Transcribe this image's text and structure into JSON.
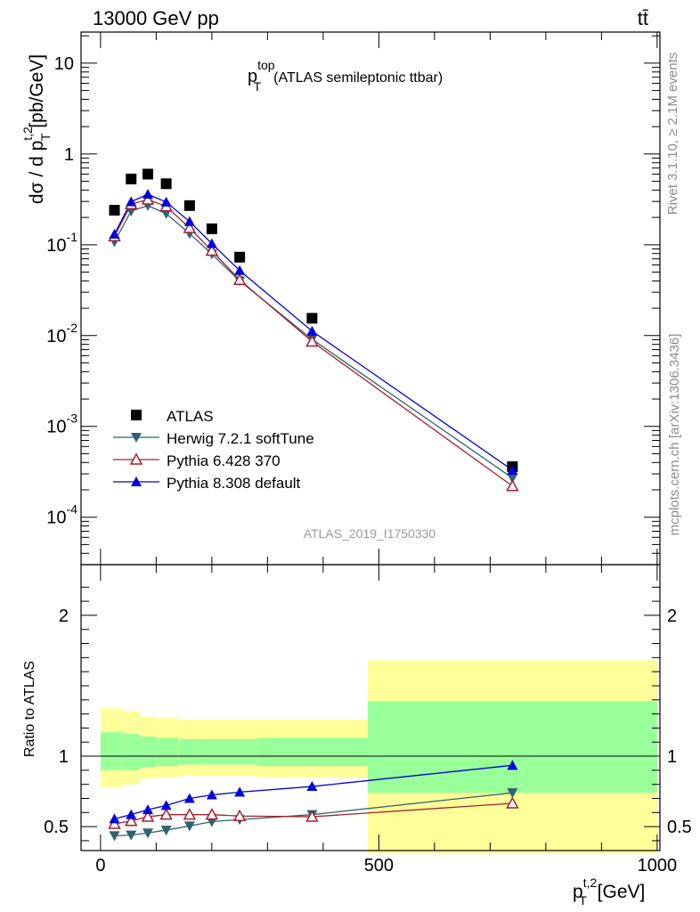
{
  "header": {
    "left": "13000 GeV pp",
    "right": "tt̄"
  },
  "sidebar": {
    "rivet": "Rivet 3.1.10, ≥ 2.1M events",
    "mcplots": "mcplots.cern.ch [arXiv:1306.3436]"
  },
  "main_title": {
    "var": "p",
    "sup": "top",
    "sub": "T",
    "rest": "(ATLAS semileptonic ttbar)"
  },
  "analysis_id": "ATLAS_2019_I1750330",
  "ylabel_upper": {
    "pre": "dσ / d p",
    "sup": "t,2",
    "sub": "T",
    "post": " [pb/GeV]"
  },
  "ylabel_lower": "Ratio to ATLAS",
  "xlabel": {
    "var": "p",
    "sup": "t,2",
    "sub": "T",
    "post": " [GeV]"
  },
  "legend": [
    {
      "label": "ATLAS",
      "marker": "square",
      "color": "#000000"
    },
    {
      "label": "Herwig 7.2.1 softTune",
      "marker": "triangle-down",
      "color": "#2e6270"
    },
    {
      "label": "Pythia 6.428 370",
      "marker": "triangle-open",
      "color": "#a3202f"
    },
    {
      "label": "Pythia 8.308 default",
      "marker": "triangle-up",
      "color": "#0000dd"
    }
  ],
  "chart_data": [
    {
      "type": "scatter",
      "panel": "main",
      "yscale": "log",
      "xlim": [
        -35,
        1005
      ],
      "ylim": [
        3e-05,
        22
      ],
      "x_ticks": [
        0,
        500,
        1000
      ],
      "y_tick_labels": [
        "10",
        "1",
        "10^-1",
        "10^-2",
        "10^-3",
        "10^-4"
      ],
      "y_tick_values": [
        10,
        1,
        0.1,
        0.01,
        0.001,
        0.0001
      ],
      "x": [
        25,
        55,
        85,
        118,
        160,
        200,
        250,
        380,
        740
      ],
      "series": [
        {
          "name": "ATLAS",
          "values": [
            0.24,
            0.53,
            0.6,
            0.47,
            0.27,
            0.15,
            0.073,
            0.0155,
            0.00036
          ]
        },
        {
          "name": "Herwig 7.2.1 softTune",
          "values": [
            0.108,
            0.235,
            0.27,
            0.22,
            0.133,
            0.079,
            0.04,
            0.0091,
            0.00027
          ]
        },
        {
          "name": "Pythia 6.428 370",
          "values": [
            0.124,
            0.28,
            0.315,
            0.265,
            0.153,
            0.086,
            0.041,
            0.0086,
            0.00022
          ]
        },
        {
          "name": "Pythia 8.308 default",
          "values": [
            0.131,
            0.298,
            0.36,
            0.295,
            0.18,
            0.103,
            0.052,
            0.0112,
            0.00033
          ]
        }
      ]
    },
    {
      "type": "scatter",
      "panel": "ratio",
      "xlim": [
        -35,
        1005
      ],
      "ylim": [
        0.33,
        2.36
      ],
      "x_ticks": [
        0,
        500,
        1000
      ],
      "y_ticks": [
        0.5,
        1,
        2
      ],
      "reference_line": 1,
      "x": [
        25,
        55,
        85,
        118,
        160,
        200,
        250,
        380,
        740
      ],
      "bins": [
        [
          0,
          40
        ],
        [
          40,
          70
        ],
        [
          70,
          100
        ],
        [
          100,
          140
        ],
        [
          140,
          180
        ],
        [
          180,
          225
        ],
        [
          225,
          280
        ],
        [
          280,
          480
        ],
        [
          480,
          1000
        ]
      ],
      "band_stat": [
        [
          0.9,
          1.17
        ],
        [
          0.9,
          1.16
        ],
        [
          0.92,
          1.14
        ],
        [
          0.93,
          1.13
        ],
        [
          0.94,
          1.12
        ],
        [
          0.94,
          1.12
        ],
        [
          0.94,
          1.12
        ],
        [
          0.93,
          1.13
        ],
        [
          0.74,
          1.39
        ]
      ],
      "band_total": [
        [
          0.78,
          1.34
        ],
        [
          0.8,
          1.32
        ],
        [
          0.84,
          1.28
        ],
        [
          0.85,
          1.27
        ],
        [
          0.86,
          1.26
        ],
        [
          0.86,
          1.26
        ],
        [
          0.86,
          1.26
        ],
        [
          0.85,
          1.26
        ],
        [
          0.31,
          1.68
        ]
      ],
      "series": [
        {
          "name": "Herwig 7.2.1 softTune",
          "values": [
            0.435,
            0.44,
            0.455,
            0.475,
            0.505,
            0.535,
            0.55,
            0.585,
            0.74
          ]
        },
        {
          "name": "Pythia 6.428 370",
          "values": [
            0.52,
            0.54,
            0.57,
            0.585,
            0.585,
            0.585,
            0.575,
            0.57,
            0.665
          ]
        },
        {
          "name": "Pythia 8.308 default",
          "values": [
            0.555,
            0.585,
            0.62,
            0.65,
            0.7,
            0.725,
            0.745,
            0.785,
            0.935
          ]
        }
      ]
    }
  ]
}
